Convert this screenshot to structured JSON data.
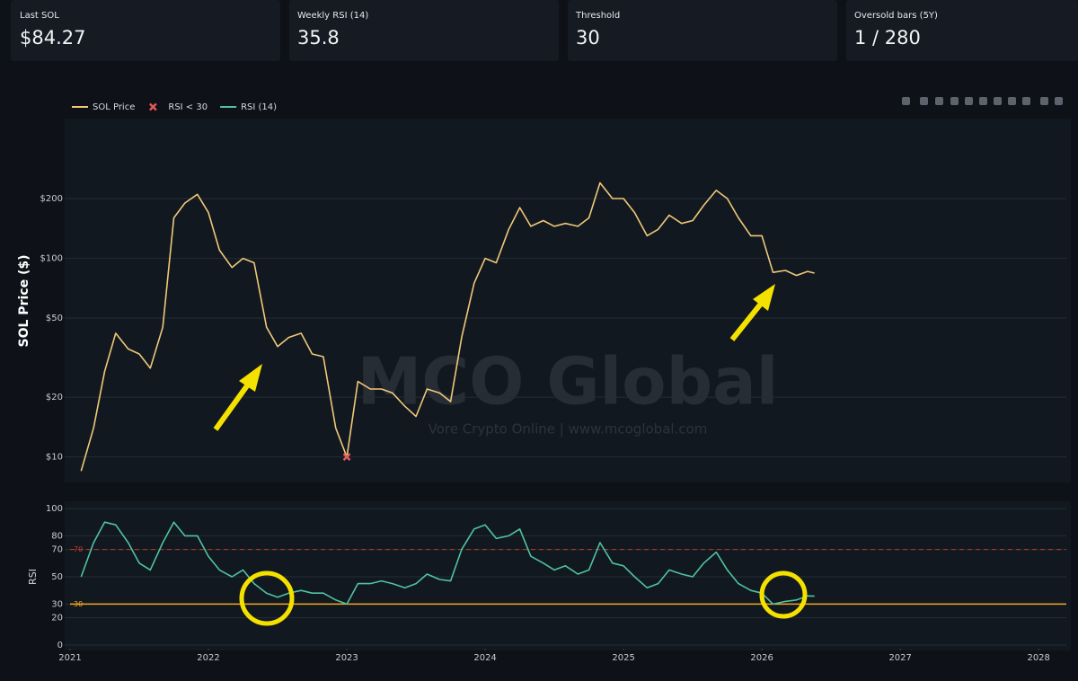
{
  "metrics": [
    {
      "label": "Last SOL",
      "value": "$84.27"
    },
    {
      "label": "Weekly RSI (14)",
      "value": "35.8"
    },
    {
      "label": "Threshold",
      "value": "30"
    },
    {
      "label": "Oversold bars (5Y)",
      "value": "1 / 280"
    }
  ],
  "watermark": {
    "title": "MCO Global",
    "subtitle": "Vore Crypto Online  |  www.mcoglobal.com"
  },
  "chart_data": [
    {
      "type": "line",
      "y_label": "SOL Price ($)",
      "log_y": true,
      "xlim": [
        2021,
        2028.2
      ],
      "ylim": [
        7.6,
        490
      ],
      "yticks": [
        {
          "value": 10,
          "label": "$10"
        },
        {
          "value": 20,
          "label": "$20"
        },
        {
          "value": 50,
          "label": "$50"
        },
        {
          "value": 100,
          "label": "$100"
        },
        {
          "value": 200,
          "label": "$200"
        }
      ],
      "grid": true,
      "series": [
        {
          "name": "SOL Price",
          "color": "#f0c878",
          "x": [
            2021.08,
            2021.17,
            2021.25,
            2021.33,
            2021.42,
            2021.5,
            2021.58,
            2021.67,
            2021.75,
            2021.83,
            2021.92,
            2022,
            2022.08,
            2022.17,
            2022.25,
            2022.33,
            2022.42,
            2022.5,
            2022.58,
            2022.67,
            2022.75,
            2022.83,
            2022.92,
            2023,
            2023.08,
            2023.17,
            2023.25,
            2023.33,
            2023.42,
            2023.5,
            2023.58,
            2023.67,
            2023.75,
            2023.83,
            2023.92,
            2024,
            2024.08,
            2024.17,
            2024.25,
            2024.33,
            2024.42,
            2024.5,
            2024.58,
            2024.67,
            2024.75,
            2024.83,
            2024.92,
            2025,
            2025.08,
            2025.17,
            2025.25,
            2025.33,
            2025.42,
            2025.5,
            2025.58,
            2025.67,
            2025.75,
            2025.83,
            2025.92,
            2026,
            2026.08,
            2026.17,
            2026.25,
            2026.33,
            2026.38
          ],
          "values": [
            8.5,
            14,
            27,
            42,
            35,
            33,
            28,
            45,
            160,
            190,
            210,
            170,
            110,
            90,
            100,
            95,
            45,
            36,
            40,
            42,
            33,
            32,
            14,
            10,
            24,
            22,
            22,
            21,
            18,
            16,
            22,
            21,
            19,
            40,
            75,
            100,
            95,
            140,
            180,
            145,
            155,
            145,
            150,
            145,
            160,
            240,
            200,
            200,
            170,
            130,
            140,
            165,
            150,
            155,
            185,
            220,
            200,
            160,
            130,
            130,
            85,
            87,
            82,
            86,
            84.27
          ]
        },
        {
          "name": "RSI < 30",
          "color": "#e05a5a",
          "marker": "x",
          "x": [
            2023
          ],
          "values": [
            10
          ]
        }
      ]
    },
    {
      "type": "line",
      "y_label": "RSI",
      "xlim": [
        2021,
        2028.2
      ],
      "ylim": [
        0,
        100
      ],
      "yticks": [
        0,
        20,
        30,
        50,
        70,
        80,
        100
      ],
      "xticks": [
        2021,
        2022,
        2023,
        2024,
        2025,
        2026,
        2027,
        2028
      ],
      "grid": true,
      "hlines": [
        {
          "value": 70,
          "color": "#c0392b",
          "dash": true
        },
        {
          "value": 30,
          "color": "#f5a623",
          "dash": false
        }
      ],
      "series": [
        {
          "name": "RSI (14)",
          "color": "#4fc3a1",
          "x": [
            2021.08,
            2021.17,
            2021.25,
            2021.33,
            2021.42,
            2021.5,
            2021.58,
            2021.67,
            2021.75,
            2021.83,
            2021.92,
            2022,
            2022.08,
            2022.17,
            2022.25,
            2022.33,
            2022.42,
            2022.5,
            2022.58,
            2022.67,
            2022.75,
            2022.83,
            2022.92,
            2023,
            2023.08,
            2023.17,
            2023.25,
            2023.33,
            2023.42,
            2023.5,
            2023.58,
            2023.67,
            2023.75,
            2023.83,
            2023.92,
            2024,
            2024.08,
            2024.17,
            2024.25,
            2024.33,
            2024.42,
            2024.5,
            2024.58,
            2024.67,
            2024.75,
            2024.83,
            2024.92,
            2025,
            2025.08,
            2025.17,
            2025.25,
            2025.33,
            2025.42,
            2025.5,
            2025.58,
            2025.67,
            2025.75,
            2025.83,
            2025.92,
            2026,
            2026.08,
            2026.17,
            2026.25,
            2026.33,
            2026.38
          ],
          "values": [
            50,
            75,
            90,
            88,
            75,
            60,
            55,
            75,
            90,
            80,
            80,
            65,
            55,
            50,
            55,
            45,
            38,
            35,
            38,
            40,
            38,
            38,
            33,
            30,
            45,
            45,
            47,
            45,
            42,
            45,
            52,
            48,
            47,
            70,
            85,
            88,
            78,
            80,
            85,
            65,
            60,
            55,
            58,
            52,
            55,
            75,
            60,
            58,
            50,
            42,
            45,
            55,
            52,
            50,
            60,
            68,
            55,
            45,
            40,
            38,
            30,
            32,
            33,
            36,
            35.8
          ]
        }
      ]
    }
  ]
}
